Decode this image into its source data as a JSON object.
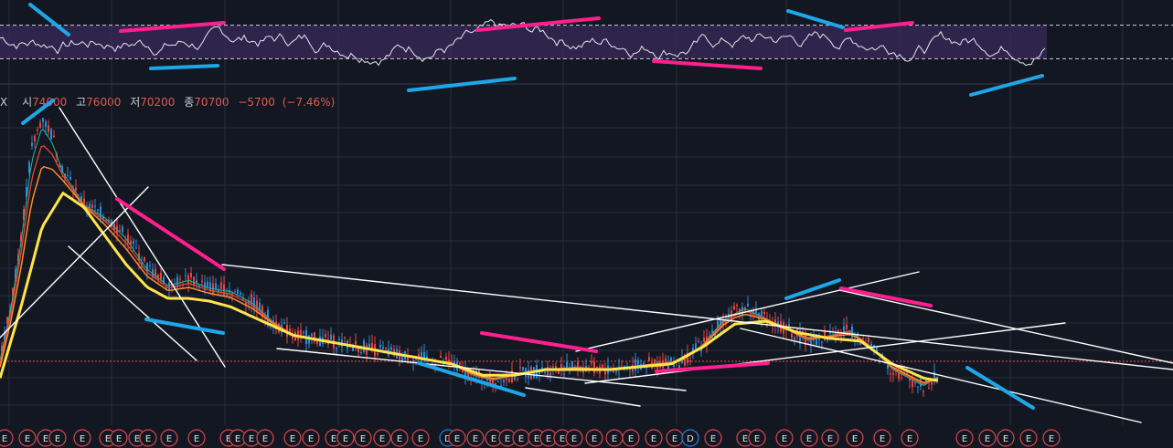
{
  "ohlc": {
    "symbol_fragment": "X",
    "open_label": "시",
    "open": "74000",
    "high_label": "고",
    "high": "76000",
    "low_label": "저",
    "low": "70200",
    "close_label": "종",
    "close": "70700",
    "change": "−5700",
    "change_pct": "(−7.46%)"
  },
  "colors": {
    "background": "#131722",
    "grid": "#2a2e3a",
    "rsi_band": "#3a2a5a",
    "rsi_line": "#e6e6f0",
    "ma_yellow": "#ffe44a",
    "ma_orange": "#ff8c2a",
    "ma_red": "#e8452e",
    "ma_teal": "#2bb39b",
    "trend_white": "#ffffff",
    "trend_pink": "#ff1f8f",
    "trend_blue": "#1ea7e8",
    "event_badge": "#d84a4a",
    "event_badge_alt": "#2a7fd4"
  },
  "chart_data": {
    "type": "line",
    "price_panel": {
      "legend": "none",
      "moving_averages": [
        "yellow",
        "orange",
        "red",
        "teal"
      ],
      "last_price_line": 70700,
      "price_path": [
        [
          0.0,
          0.12
        ],
        [
          0.01,
          0.3
        ],
        [
          0.02,
          0.55
        ],
        [
          0.03,
          0.85
        ],
        [
          0.04,
          0.97
        ],
        [
          0.05,
          0.9
        ],
        [
          0.06,
          0.78
        ],
        [
          0.08,
          0.66
        ],
        [
          0.1,
          0.62
        ],
        [
          0.12,
          0.55
        ],
        [
          0.14,
          0.44
        ],
        [
          0.16,
          0.38
        ],
        [
          0.18,
          0.4
        ],
        [
          0.2,
          0.37
        ],
        [
          0.22,
          0.36
        ],
        [
          0.24,
          0.32
        ],
        [
          0.26,
          0.25
        ],
        [
          0.28,
          0.2
        ],
        [
          0.3,
          0.19
        ],
        [
          0.33,
          0.17
        ],
        [
          0.36,
          0.15
        ],
        [
          0.38,
          0.13
        ],
        [
          0.4,
          0.12
        ],
        [
          0.43,
          0.1
        ],
        [
          0.45,
          0.06
        ],
        [
          0.47,
          0.04
        ],
        [
          0.5,
          0.07
        ],
        [
          0.52,
          0.08
        ],
        [
          0.55,
          0.09
        ],
        [
          0.58,
          0.08
        ],
        [
          0.6,
          0.09
        ],
        [
          0.62,
          0.1
        ],
        [
          0.65,
          0.11
        ],
        [
          0.67,
          0.17
        ],
        [
          0.69,
          0.26
        ],
        [
          0.71,
          0.3
        ],
        [
          0.73,
          0.26
        ],
        [
          0.75,
          0.22
        ],
        [
          0.77,
          0.18
        ],
        [
          0.79,
          0.2
        ],
        [
          0.81,
          0.22
        ],
        [
          0.83,
          0.16
        ],
        [
          0.85,
          0.08
        ],
        [
          0.87,
          0.04
        ],
        [
          0.88,
          0.02
        ],
        [
          0.895,
          0.06
        ]
      ],
      "yellow_ma_path": [
        [
          0.0,
          0.05
        ],
        [
          0.02,
          0.3
        ],
        [
          0.04,
          0.58
        ],
        [
          0.06,
          0.7
        ],
        [
          0.08,
          0.65
        ],
        [
          0.1,
          0.55
        ],
        [
          0.12,
          0.45
        ],
        [
          0.14,
          0.37
        ],
        [
          0.16,
          0.33
        ],
        [
          0.18,
          0.33
        ],
        [
          0.2,
          0.32
        ],
        [
          0.22,
          0.3
        ],
        [
          0.25,
          0.25
        ],
        [
          0.28,
          0.2
        ],
        [
          0.31,
          0.18
        ],
        [
          0.34,
          0.16
        ],
        [
          0.37,
          0.14
        ],
        [
          0.4,
          0.12
        ],
        [
          0.43,
          0.1
        ],
        [
          0.46,
          0.06
        ],
        [
          0.49,
          0.06
        ],
        [
          0.52,
          0.08
        ],
        [
          0.55,
          0.08
        ],
        [
          0.58,
          0.08
        ],
        [
          0.61,
          0.09
        ],
        [
          0.64,
          0.1
        ],
        [
          0.67,
          0.16
        ],
        [
          0.7,
          0.24
        ],
        [
          0.73,
          0.25
        ],
        [
          0.76,
          0.21
        ],
        [
          0.79,
          0.19
        ],
        [
          0.82,
          0.18
        ],
        [
          0.85,
          0.1
        ],
        [
          0.88,
          0.05
        ],
        [
          0.895,
          0.04
        ]
      ]
    },
    "rsi_panel": {
      "band": [
        30,
        70
      ]
    },
    "event_badges": [
      "E",
      "E",
      "E",
      "E",
      "E",
      "E",
      "E",
      "E",
      "E",
      "E",
      "E",
      "E",
      "E",
      "E",
      "E",
      "E",
      "E",
      "E",
      "E",
      "E",
      "E",
      "E",
      "E",
      "D",
      "E",
      "E",
      "E",
      "E",
      "E",
      "E",
      "E",
      "E",
      "E",
      "E",
      "E",
      "E",
      "E",
      "E",
      "D",
      "E",
      "E",
      "E",
      "E",
      "E",
      "E",
      "E",
      "E",
      "E",
      "E",
      "E",
      "E",
      "E",
      "E",
      "E"
    ]
  }
}
